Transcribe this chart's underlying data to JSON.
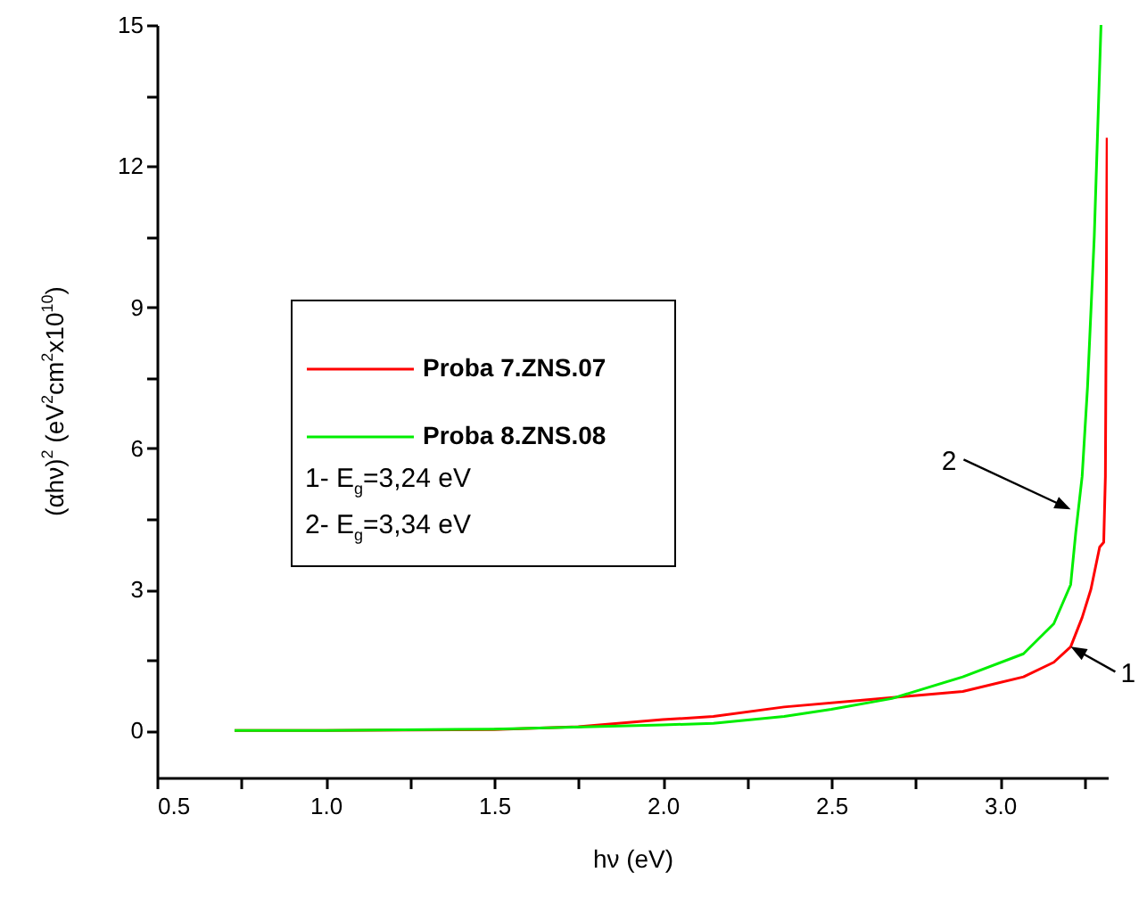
{
  "chart_data": {
    "type": "line",
    "xlabel": "hν (eV)",
    "ylabel": "(αhν)$^{2}$ (eV$^{2}$cm$^{2}$x10$^{10}$)",
    "xlim": [
      0.5,
      3.32
    ],
    "xticks": [
      0.5,
      {
        "value": 0.75,
        "label": null
      },
      {
        "value": 1,
        "label": "1.0"
      },
      {
        "value": 1.25,
        "label": null
      },
      1.5,
      {
        "value": 1.75,
        "label": null
      },
      {
        "value": 2,
        "label": "2.0"
      },
      {
        "value": 2.25,
        "label": null
      },
      2.5,
      {
        "value": 2.75,
        "label": null
      },
      {
        "value": 3,
        "label": "3.0"
      },
      {
        "value": 3.25,
        "label": null
      }
    ],
    "ylim": [
      -1,
      15
    ],
    "yticks": [
      0,
      {
        "value": 1.5,
        "label": null
      },
      3,
      {
        "value": 4.5,
        "label": null
      },
      6,
      {
        "value": 7.5,
        "label": null
      },
      9,
      {
        "value": 10.5,
        "label": null
      },
      12,
      {
        "value": 13.5,
        "label": null
      },
      15
    ],
    "legend": "left",
    "series": [
      {
        "name": "Proba 7.ZNS.07",
        "color": "#ff0000",
        "x": [
          0.73,
          1.0,
          1.5,
          1.75,
          2.0,
          2.15,
          2.36,
          2.6,
          2.89,
          3.07,
          3.16,
          3.21,
          3.244,
          3.27,
          3.296,
          3.308,
          3.313,
          3.318
        ],
        "values": [
          0,
          0,
          0.02,
          0.08,
          0.23,
          0.3,
          0.5,
          0.65,
          0.83,
          1.14,
          1.45,
          1.78,
          2.4,
          3.0,
          3.9,
          4.0,
          5.4,
          12.6
        ]
      },
      {
        "name": "Proba 8.ZNS.08",
        "color": "#00ee00",
        "x": [
          0.73,
          1.0,
          1.5,
          2.0,
          2.15,
          2.36,
          2.5,
          2.68,
          2.89,
          3.07,
          3.16,
          3.21,
          3.225,
          3.244,
          3.26,
          3.28,
          3.3
        ],
        "values": [
          0,
          0,
          0.03,
          0.12,
          0.15,
          0.3,
          0.45,
          0.68,
          1.14,
          1.63,
          2.27,
          3.1,
          4.2,
          5.4,
          7.3,
          10.5,
          15
        ]
      }
    ],
    "annotations": [
      "1- E$_{g}$=3,24 eV",
      "2- E$_{g}$=3,34 eV",
      {
        "text": "1",
        "x": 3.21,
        "y": 1.78
      },
      {
        "text": "2",
        "x": 3.21,
        "y": 4.7
      }
    ]
  }
}
